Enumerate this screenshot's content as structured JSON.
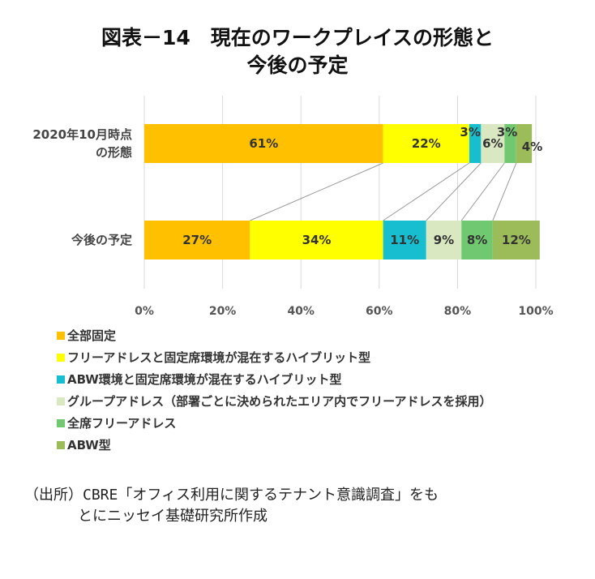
{
  "title_line1": "図表－14　現在のワークプレイスの形態と",
  "title_line2": "今後の予定",
  "chart_data": {
    "type": "bar",
    "orientation": "horizontal",
    "stacked": "percent",
    "categories": [
      "2020年10月時点の形態",
      "今後の予定"
    ],
    "category_labels": [
      [
        "2020年10月時点",
        "の形態"
      ],
      [
        "今後の予定"
      ]
    ],
    "xlim": [
      0,
      100
    ],
    "xticks": [
      "0%",
      "20%",
      "40%",
      "60%",
      "80%",
      "100%"
    ],
    "grid": true,
    "legend_position": "bottom-left",
    "series": [
      {
        "name": "全部固定",
        "color": "#FFC000",
        "values": [
          61,
          27
        ],
        "labels": [
          "61%",
          "27%"
        ]
      },
      {
        "name": "フリーアドレスと固定席環境が混在するハイブリット型",
        "color": "#FFFF00",
        "values": [
          22,
          34
        ],
        "labels": [
          "22%",
          "34%"
        ]
      },
      {
        "name": "ABW環境と固定席環境が混在するハイブリット型",
        "color": "#17BECF",
        "values": [
          3,
          11
        ],
        "labels": [
          "3%",
          "11%"
        ]
      },
      {
        "name": "グループアドレス（部署ごとに決められたエリア内でフリーアドレスを採用）",
        "color": "#D9E8C0",
        "values": [
          6,
          9
        ],
        "labels": [
          "6%",
          "9%"
        ]
      },
      {
        "name": "全席フリーアドレス",
        "color": "#70C870",
        "values": [
          3,
          8
        ],
        "labels": [
          "3%",
          "8%"
        ]
      },
      {
        "name": "ABW型",
        "color": "#9CBB59",
        "values": [
          4,
          12
        ],
        "labels": [
          "4%",
          "12%"
        ]
      }
    ]
  },
  "source_line1": "（出所）CBRE「オフィス利用に関するテナント意識調査」をも",
  "source_line2": "とにニッセイ基礎研究所作成"
}
